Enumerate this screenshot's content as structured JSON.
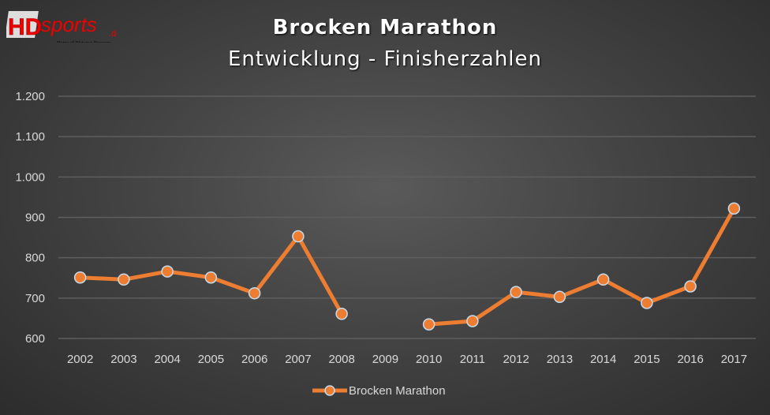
{
  "logo": {
    "text": "HDsports.de",
    "tagline": "Home of Distance Runners"
  },
  "colors": {
    "line": "#ed7d31",
    "marker_edge": "#c5dcef",
    "grid": "#5e5e5e",
    "text": "#d9d9d9"
  },
  "chart_data": {
    "type": "line",
    "title": "Brocken Marathon",
    "subtitle": "Entwicklung - Finisherzahlen",
    "categories": [
      "2002",
      "2003",
      "2004",
      "2005",
      "2006",
      "2007",
      "2008",
      "2009",
      "2010",
      "2011",
      "2012",
      "2013",
      "2014",
      "2015",
      "2016",
      "2017"
    ],
    "series": [
      {
        "name": "Brocken Marathon",
        "values": [
          751,
          746,
          766,
          751,
          712,
          853,
          661,
          null,
          635,
          643,
          715,
          703,
          746,
          688,
          729,
          922
        ]
      }
    ],
    "ylim": [
      600,
      1200
    ],
    "yticks": [
      "600",
      "700",
      "800",
      "900",
      "1.000",
      "1.100",
      "1.200"
    ],
    "grid": true,
    "legend": "bottom"
  }
}
